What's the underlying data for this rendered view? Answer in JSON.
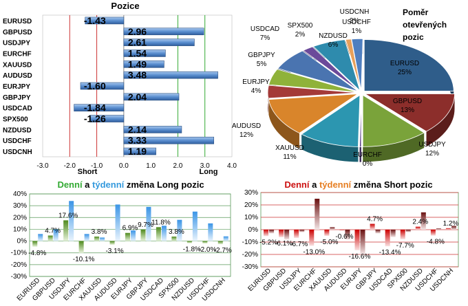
{
  "colors": {
    "long": "#33aa33",
    "short": "#cc1111",
    "blue": "#3399dd",
    "green_bar": "#559922",
    "red_bar": "#cc0000"
  },
  "chart_data": [
    {
      "type": "bar",
      "title": "Pozice",
      "orientation": "horizontal",
      "categories": [
        "EURUSD",
        "GBPUSD",
        "USDJPY",
        "EURCHF",
        "XAUUSD",
        "AUDUSD",
        "EURJPY",
        "GBPJPY",
        "USDCAD",
        "SPX500",
        "NZDUSD",
        "USDCHF",
        "USDCNH"
      ],
      "values": [
        -1.43,
        2.96,
        2.61,
        1.54,
        1.49,
        3.48,
        -1.6,
        2.04,
        -1.84,
        -1.26,
        2.14,
        3.33,
        1.19
      ],
      "value_labels": [
        "-1.43",
        "2.96",
        "2.61",
        "1.54",
        "1.49",
        "3.48",
        "-1.60",
        "2.04",
        "-1.84",
        "-1.26",
        "2.14",
        "3.33",
        "1.19"
      ],
      "xlim": [
        -3,
        4
      ],
      "xticks": [
        "-3.0",
        "-2.0",
        "-1.0",
        "0.0",
        "1.0",
        "2.0",
        "3.0",
        "4.0"
      ],
      "annotations": {
        "short": "Short",
        "long": "Long"
      }
    },
    {
      "type": "pie",
      "title": "Poměr otevřených pozic",
      "labels": [
        "EURUSD",
        "GBPUSD",
        "USDJPY",
        "EURCHF",
        "XAUUSD",
        "AUDUSD",
        "EURJPY",
        "GBPJPY",
        "USDCAD",
        "SPX500",
        "NZDUSD",
        "USDCHF",
        "USDCNH"
      ],
      "values": [
        25,
        13,
        12,
        0,
        11,
        12,
        4,
        5,
        7,
        2,
        6,
        1,
        2
      ],
      "value_labels": [
        "25%",
        "13%",
        "12%",
        "0%",
        "11%",
        "12%",
        "4%",
        "5%",
        "7%",
        "2%",
        "6%",
        "1%",
        "2%"
      ],
      "colors": [
        "#2f5d8a",
        "#8c2e2b",
        "#7aa33a",
        "#5a3f86",
        "#2c96b0",
        "#d9852b",
        "#a43a38",
        "#8fb23a",
        "#4a74b0",
        "#6b4a9a",
        "#2e8bad",
        "#e7a05b",
        "#4f7fc0"
      ]
    },
    {
      "type": "bar",
      "title": {
        "part1": "Denní",
        "part2": " a ",
        "part3": "týdenní",
        "part4": " změna Long pozic"
      },
      "categories": [
        "EURUSD",
        "GBPUSD",
        "USDJPY",
        "EURCHF",
        "XAUUSD",
        "AUDUSD",
        "EURJPY",
        "GBPJPY",
        "USDCAD",
        "SPX500",
        "NZDUSD",
        "USDCHF",
        "USDCNH"
      ],
      "series": [
        {
          "values": [
            -4.8,
            4.7,
            17.6,
            -10.1,
            3.8,
            -3.1,
            6.9,
            9.7,
            11.8,
            3.8,
            -1.8,
            -2.0,
            -2.7
          ]
        },
        {
          "values": [
            6,
            10,
            34,
            6,
            3,
            31,
            9,
            29,
            13,
            18,
            25,
            15,
            4
          ]
        }
      ],
      "value_labels": [
        "-4.8%",
        "4.7%",
        "17.6%",
        "-10.1%",
        "3.8%",
        "-3.1%",
        "6.9%",
        "9.7%",
        "11.8%",
        "3.8%",
        "-1.8%",
        "-2.0%",
        "-2.7%"
      ],
      "ylim": [
        -30,
        40
      ],
      "yticks": [
        "-30%",
        "-20%",
        "-10%",
        "0%",
        "10%",
        "20%",
        "30%",
        "40%"
      ]
    },
    {
      "type": "bar",
      "title": {
        "part1": "Denní",
        "part2": " a ",
        "part3": "týdenní",
        "part4": " změna Short pozic"
      },
      "categories": [
        "EURUSD",
        "GBPUSD",
        "USDJPY",
        "EURCHF",
        "XAUUSD",
        "AUDUSD",
        "EURJPY",
        "GBPJPY",
        "USDCAD",
        "SPX500",
        "NZDUSD",
        "USDCHF",
        "USDCNH"
      ],
      "series": [
        {
          "values": [
            -5.2,
            -6.1,
            -6.7,
            -13.0,
            -5.0,
            -0.6,
            -16.6,
            4.7,
            -13.4,
            -7.7,
            2.4,
            -4.8,
            1.2
          ]
        },
        {
          "values": [
            -3,
            -8,
            -2,
            25,
            2,
            -8,
            -20,
            -3,
            -6,
            -2,
            14,
            1,
            3
          ]
        }
      ],
      "value_labels": [
        "-5.2%",
        "-6.1%",
        "-6.7%",
        "-13.0%",
        "-5.0%",
        "-0.6%",
        "-16.6%",
        "4.7%",
        "-13.4%",
        "-7.7%",
        "2.4%",
        "-4.8%",
        "1.2%"
      ],
      "ylim": [
        -30,
        30
      ],
      "yticks": [
        "-30%",
        "-20%",
        "-10%",
        "0%",
        "10%",
        "20%",
        "30%"
      ]
    }
  ]
}
